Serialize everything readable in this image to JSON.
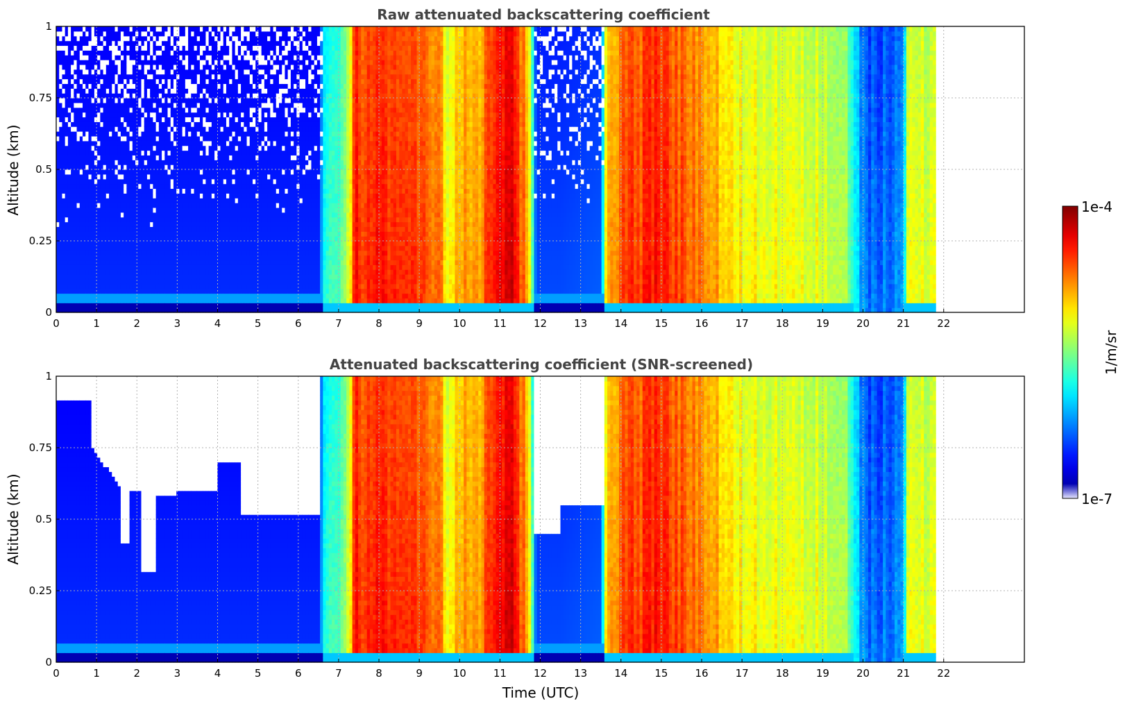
{
  "chart_data": [
    {
      "type": "heatmap",
      "title": "Raw attenuated backscattering coefficient",
      "xlabel": "",
      "ylabel": "Altitude (km)",
      "xlim": [
        0,
        24
      ],
      "ylim": [
        0,
        1
      ],
      "x_ticks": [
        0,
        1,
        2,
        3,
        4,
        5,
        6,
        7,
        8,
        9,
        10,
        11,
        12,
        13,
        14,
        15,
        16,
        17,
        18,
        19,
        20,
        21,
        22
      ],
      "y_ticks": [
        "0",
        "0.25",
        "0.5",
        "0.75",
        "1"
      ],
      "data_end_hour": 21.8,
      "grid": true,
      "screened": false
    },
    {
      "type": "heatmap",
      "title": "Attenuated backscattering coefficient (SNR-screened)",
      "xlabel": "Time (UTC)",
      "ylabel": "Altitude (km)",
      "xlim": [
        0,
        24
      ],
      "ylim": [
        0,
        1
      ],
      "x_ticks": [
        0,
        1,
        2,
        3,
        4,
        5,
        6,
        7,
        8,
        9,
        10,
        11,
        12,
        13,
        14,
        15,
        16,
        17,
        18,
        19,
        20,
        21,
        22
      ],
      "y_ticks": [
        "0",
        "0.25",
        "0.5",
        "0.75",
        "1"
      ],
      "data_end_hour": 21.8,
      "grid": true,
      "screened": true
    }
  ],
  "colorbar": {
    "label": "1/m/sr",
    "max_label": "1e-4",
    "min_label": "1e-7",
    "scale": "log",
    "colormap": "jet"
  },
  "intensity_profile": {
    "hours": [
      0,
      6.55,
      6.6,
      6.9,
      7.2,
      7.4,
      7.6,
      8.0,
      8.4,
      9.0,
      9.5,
      9.75,
      10.0,
      10.5,
      11.0,
      11.3,
      11.7,
      11.9,
      12.5,
      13.5,
      13.65,
      14.0,
      15.0,
      15.4,
      16.0,
      16.5,
      17.0,
      18.0,
      19.0,
      19.5,
      20.0,
      20.4,
      21.0,
      21.1,
      21.8
    ],
    "levels": [
      0.17,
      0.17,
      0.4,
      0.48,
      0.5,
      0.87,
      0.84,
      0.86,
      0.85,
      0.8,
      0.77,
      0.6,
      0.72,
      0.75,
      0.88,
      0.93,
      0.72,
      0.2,
      0.2,
      0.22,
      0.68,
      0.8,
      0.86,
      0.82,
      0.76,
      0.7,
      0.64,
      0.62,
      0.6,
      0.58,
      0.26,
      0.22,
      0.3,
      0.6,
      0.6
    ]
  },
  "colors": {
    "no_data": "#ffffff",
    "frame": "#000000",
    "title": "#444444"
  }
}
